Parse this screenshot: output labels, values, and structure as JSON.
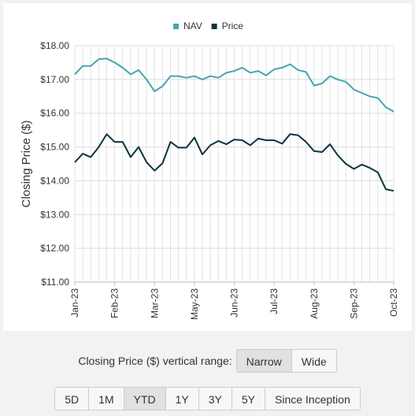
{
  "chart_data": {
    "type": "line",
    "ylabel": "Closing Price ($)",
    "ylim": [
      11,
      18
    ],
    "yticks": [
      {
        "value": 18,
        "label": "$18.00"
      },
      {
        "value": 17,
        "label": "$17.00"
      },
      {
        "value": 16,
        "label": "$16.00"
      },
      {
        "value": 15,
        "label": "$15.00"
      },
      {
        "value": 14,
        "label": "$14.00"
      },
      {
        "value": 13,
        "label": "$13.00"
      },
      {
        "value": 12,
        "label": "$12.00"
      },
      {
        "value": 11,
        "label": "$11.00"
      }
    ],
    "xticks": [
      {
        "index": 0,
        "label": "Jan-23"
      },
      {
        "index": 10,
        "label": "Feb-23"
      },
      {
        "index": 20,
        "label": "Mar-23"
      },
      {
        "index": 30,
        "label": "May-23"
      },
      {
        "index": 40,
        "label": "Jun-23"
      },
      {
        "index": 50,
        "label": "Jul-23"
      },
      {
        "index": 60,
        "label": "Aug-23"
      },
      {
        "index": 70,
        "label": "Sep-23"
      },
      {
        "index": 80,
        "label": "Oct-23"
      }
    ],
    "grid": true,
    "legend_position": "top-center",
    "series": [
      {
        "name": "NAV",
        "color": "#45a6b0",
        "x": [
          0,
          2,
          4,
          6,
          8,
          10,
          12,
          14,
          16,
          18,
          20,
          22,
          24,
          26,
          28,
          30,
          32,
          34,
          36,
          38,
          40,
          42,
          44,
          46,
          48,
          50,
          52,
          54,
          56,
          58,
          60,
          62,
          64,
          66,
          68,
          70,
          72,
          74,
          76,
          78,
          80
        ],
        "values": [
          17.15,
          17.4,
          17.4,
          17.6,
          17.62,
          17.5,
          17.35,
          17.15,
          17.28,
          17.0,
          16.65,
          16.8,
          17.1,
          17.1,
          17.05,
          17.1,
          17.0,
          17.1,
          17.05,
          17.2,
          17.25,
          17.35,
          17.2,
          17.25,
          17.12,
          17.3,
          17.35,
          17.45,
          17.28,
          17.22,
          16.82,
          16.88,
          17.1,
          17.0,
          16.93,
          16.7,
          16.6,
          16.5,
          16.45,
          16.18,
          16.05
        ]
      },
      {
        "name": "Price",
        "color": "#0c3540",
        "x": [
          0,
          2,
          4,
          6,
          8,
          10,
          12,
          14,
          16,
          18,
          20,
          22,
          24,
          26,
          28,
          30,
          32,
          34,
          36,
          38,
          40,
          42,
          44,
          46,
          48,
          50,
          52,
          54,
          56,
          58,
          60,
          62,
          64,
          66,
          68,
          70,
          72,
          74,
          76,
          78,
          80
        ],
        "values": [
          14.55,
          14.8,
          14.7,
          15.0,
          15.38,
          15.15,
          15.15,
          14.7,
          15.0,
          14.55,
          14.3,
          14.52,
          15.15,
          14.98,
          14.98,
          15.28,
          14.78,
          15.05,
          15.18,
          15.08,
          15.22,
          15.2,
          15.05,
          15.25,
          15.2,
          15.2,
          15.1,
          15.38,
          15.35,
          15.15,
          14.88,
          14.85,
          15.08,
          14.75,
          14.5,
          14.35,
          14.48,
          14.38,
          14.25,
          13.75,
          13.7
        ]
      }
    ]
  },
  "controls": {
    "range_label": "Closing Price ($) vertical range:",
    "range_buttons": [
      "Narrow",
      "Wide"
    ],
    "range_selected": "Narrow",
    "period_buttons": [
      "5D",
      "1M",
      "YTD",
      "1Y",
      "3Y",
      "5Y",
      "Since Inception"
    ],
    "period_selected": "YTD"
  }
}
